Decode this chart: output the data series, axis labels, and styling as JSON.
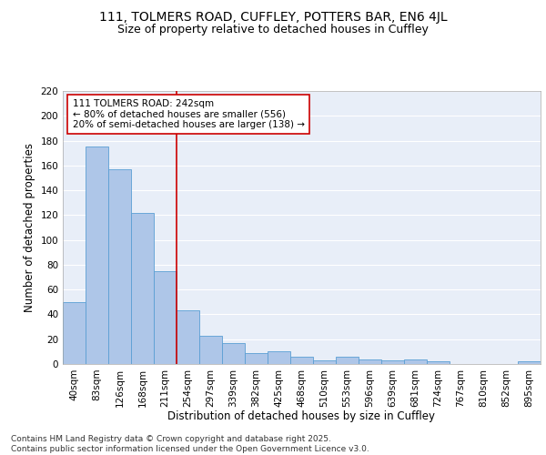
{
  "title_line1": "111, TOLMERS ROAD, CUFFLEY, POTTERS BAR, EN6 4JL",
  "title_line2": "Size of property relative to detached houses in Cuffley",
  "xlabel": "Distribution of detached houses by size in Cuffley",
  "ylabel": "Number of detached properties",
  "categories": [
    "40sqm",
    "83sqm",
    "126sqm",
    "168sqm",
    "211sqm",
    "254sqm",
    "297sqm",
    "339sqm",
    "382sqm",
    "425sqm",
    "468sqm",
    "510sqm",
    "553sqm",
    "596sqm",
    "639sqm",
    "681sqm",
    "724sqm",
    "767sqm",
    "810sqm",
    "852sqm",
    "895sqm"
  ],
  "values": [
    50,
    175,
    157,
    122,
    75,
    43,
    23,
    17,
    9,
    10,
    6,
    3,
    6,
    4,
    3,
    4,
    2,
    0,
    0,
    0,
    2
  ],
  "bar_color": "#aec6e8",
  "bar_edge_color": "#5a9fd4",
  "background_color": "#e8eef8",
  "grid_color": "#ffffff",
  "annotation_line1": "111 TOLMERS ROAD: 242sqm",
  "annotation_line2": "← 80% of detached houses are smaller (556)",
  "annotation_line3": "20% of semi-detached houses are larger (138) →",
  "annotation_box_color": "#ffffff",
  "annotation_box_edge_color": "#cc0000",
  "red_line_color": "#cc0000",
  "ylim": [
    0,
    220
  ],
  "yticks": [
    0,
    20,
    40,
    60,
    80,
    100,
    120,
    140,
    160,
    180,
    200,
    220
  ],
  "footnote": "Contains HM Land Registry data © Crown copyright and database right 2025.\nContains public sector information licensed under the Open Government Licence v3.0.",
  "title_fontsize": 10,
  "subtitle_fontsize": 9,
  "axis_label_fontsize": 8.5,
  "tick_fontsize": 7.5,
  "annotation_fontsize": 7.5,
  "footnote_fontsize": 6.5
}
